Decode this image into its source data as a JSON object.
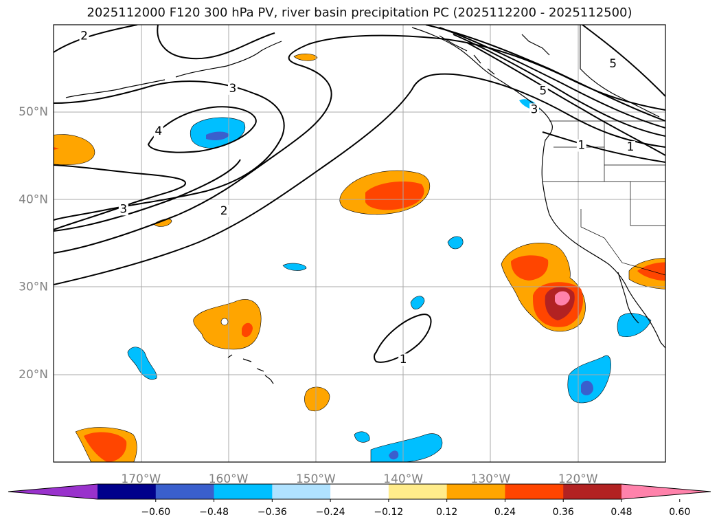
{
  "title": "2025112000 F120 300 hPa PV, river basin precipitation PC (2025112200 - 2025112500)",
  "chart_data": {
    "type": "contour-map",
    "title": "2025112000 F120 300 hPa PV, river basin precipitation PC (2025112200 - 2025112500)",
    "xlim": [
      -180,
      -110
    ],
    "ylim": [
      10,
      60
    ],
    "lon_ticks": [
      {
        "value": -170,
        "label": "170°W"
      },
      {
        "value": -160,
        "label": "160°W"
      },
      {
        "value": -150,
        "label": "150°W"
      },
      {
        "value": -140,
        "label": "140°W"
      },
      {
        "value": -130,
        "label": "130°W"
      },
      {
        "value": -120,
        "label": "120°W"
      }
    ],
    "lat_ticks": [
      {
        "value": 20,
        "label": "20°N"
      },
      {
        "value": 30,
        "label": "30°N"
      },
      {
        "value": 40,
        "label": "40°N"
      },
      {
        "value": 50,
        "label": "50°N"
      }
    ],
    "grid": true,
    "colorbar": {
      "orientation": "horizontal",
      "extend": "both",
      "colors": [
        "#9932cc",
        "#00008b",
        "#3a5fcd",
        "#00bfff",
        "#b0e2ff",
        "#ffffff",
        "#ffec8b",
        "#ffa500",
        "#ff4500",
        "#b22222",
        "#ff82ab"
      ],
      "ticks": [
        "−0.60",
        "−0.48",
        "−0.36",
        "−0.24",
        "−0.12",
        "0.12",
        "0.24",
        "0.36",
        "0.48",
        "0.60"
      ]
    },
    "pv_contour_labels": [
      {
        "text": "2",
        "lon": -176.5,
        "lat": 58.7
      },
      {
        "text": "3",
        "lon": -159.5,
        "lat": 52.7
      },
      {
        "text": "4",
        "lon": -168.0,
        "lat": 47.8
      },
      {
        "text": "3",
        "lon": -172.0,
        "lat": 38.9
      },
      {
        "text": "2",
        "lon": -160.5,
        "lat": 38.7
      },
      {
        "text": "1",
        "lon": -140.0,
        "lat": 21.7
      },
      {
        "text": "5",
        "lon": -116.0,
        "lat": 55.5
      },
      {
        "text": "5",
        "lon": -124.0,
        "lat": 52.4
      },
      {
        "text": "3",
        "lon": -125.0,
        "lat": 50.3
      },
      {
        "text": "1",
        "lon": -119.6,
        "lat": 46.2
      },
      {
        "text": "1",
        "lon": -114.0,
        "lat": 46.0
      }
    ],
    "precip_anomalies": [
      {
        "region": "central-pacific-40N",
        "lon": -142.5,
        "lat": 40.5,
        "sign": "positive",
        "peak_bin": "0.36–0.48"
      },
      {
        "region": "baja-west-28N",
        "lon": -121.5,
        "lat": 27.5,
        "sign": "positive",
        "peak_bin": ">0.60"
      },
      {
        "region": "southern-california-31N",
        "lon": -112.5,
        "lat": 31.5,
        "sign": "positive",
        "peak_bin": "0.36–0.48"
      },
      {
        "region": "northeast-pacific-47N",
        "lon": -159.0,
        "lat": 47.5,
        "sign": "negative",
        "peak_bin": "−0.48 to −0.36"
      },
      {
        "region": "southern-baja-19N",
        "lon": -120.5,
        "lat": 19.0,
        "sign": "negative",
        "peak_bin": "−0.48 to −0.36"
      },
      {
        "region": "southwest-18N",
        "lon": -175.0,
        "lat": 12.0,
        "sign": "positive",
        "peak_bin": "0.36–0.48"
      },
      {
        "region": "hawaii-north-25N",
        "lon": -158.0,
        "lat": 25.5,
        "sign": "positive",
        "peak_bin": "0.36–0.48"
      }
    ]
  }
}
